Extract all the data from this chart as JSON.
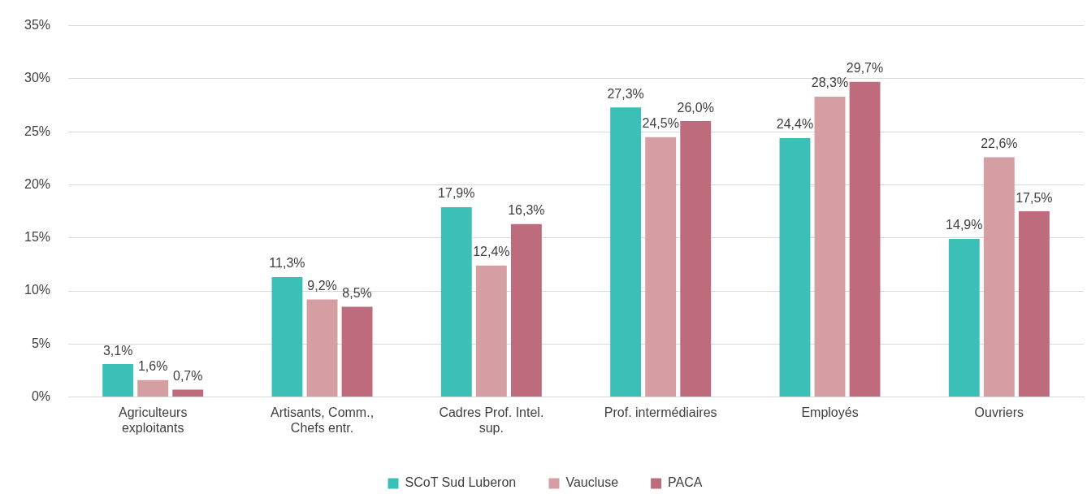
{
  "chart_data": {
    "type": "bar",
    "categories": [
      "Agriculteurs exploitants",
      "Artisants, Comm., Chefs entr.",
      "Cadres Prof. Intel. sup.",
      "Prof. intermédiaires",
      "Employés",
      "Ouvriers"
    ],
    "series": [
      {
        "name": "SCoT Sud Luberon",
        "color": "#3bbfb7",
        "values": [
          3.1,
          11.3,
          17.9,
          27.3,
          24.4,
          14.9
        ],
        "value_labels": [
          "3,1%",
          "11,3%",
          "17,9%",
          "27,3%",
          "24,4%",
          "14,9%"
        ]
      },
      {
        "name": "Vaucluse",
        "color": "#d49ea3",
        "values": [
          1.6,
          9.2,
          12.4,
          24.5,
          28.3,
          22.6
        ],
        "value_labels": [
          "1,6%",
          "9,2%",
          "12,4%",
          "24,5%",
          "28,3%",
          "22,6%"
        ]
      },
      {
        "name": "PACA",
        "color": "#be6b7d",
        "values": [
          0.7,
          8.5,
          16.3,
          26.0,
          29.7,
          17.5
        ],
        "value_labels": [
          "0,7%",
          "8,5%",
          "16,3%",
          "26,0%",
          "29,7%",
          "17,5%"
        ]
      }
    ],
    "ylim": [
      0,
      35
    ],
    "yticks": [
      {
        "value": 0,
        "label": "0%"
      },
      {
        "value": 5,
        "label": "5%"
      },
      {
        "value": 10,
        "label": "10%"
      },
      {
        "value": 15,
        "label": "15%"
      },
      {
        "value": 20,
        "label": "20%"
      },
      {
        "value": 25,
        "label": "25%"
      },
      {
        "value": 30,
        "label": "30%"
      },
      {
        "value": 35,
        "label": "35%"
      }
    ],
    "grid": "y",
    "legend": "bottom"
  }
}
